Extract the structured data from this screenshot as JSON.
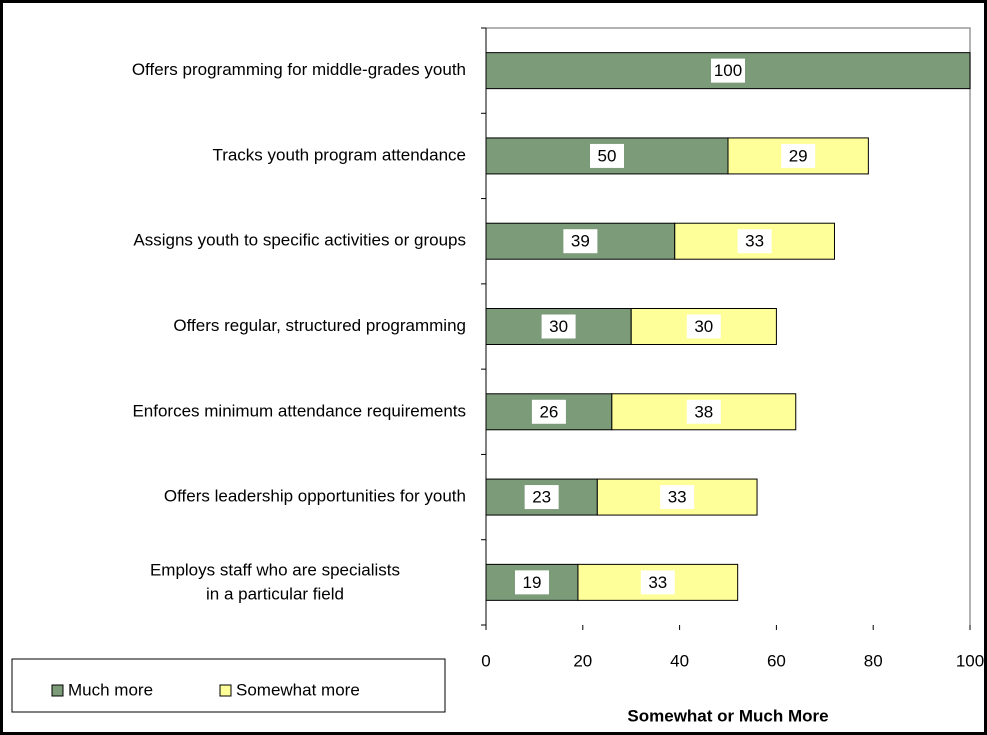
{
  "chart_data": {
    "type": "stacked_bar_horizontal",
    "categories": [
      "Offers programming for middle-grades youth",
      "Tracks youth program attendance",
      "Assigns youth to specific activities or groups",
      "Offers regular, structured programming",
      "Enforces minimum attendance requirements",
      "Offers leadership opportunities for youth",
      "Employs staff who are specialists in a particular field"
    ],
    "series": [
      {
        "name": "Much more",
        "color": "#7b9b79",
        "values": [
          100,
          50,
          39,
          30,
          26,
          23,
          19
        ]
      },
      {
        "name": "Somewhat more",
        "color": "#ffff99",
        "values": [
          null,
          29,
          33,
          30,
          38,
          33,
          33
        ]
      }
    ],
    "xlabel": "Somewhat or Much More",
    "xlim": [
      0,
      100
    ],
    "xticks": [
      0,
      20,
      40,
      60,
      80,
      100
    ],
    "legend": "bottom-left"
  }
}
